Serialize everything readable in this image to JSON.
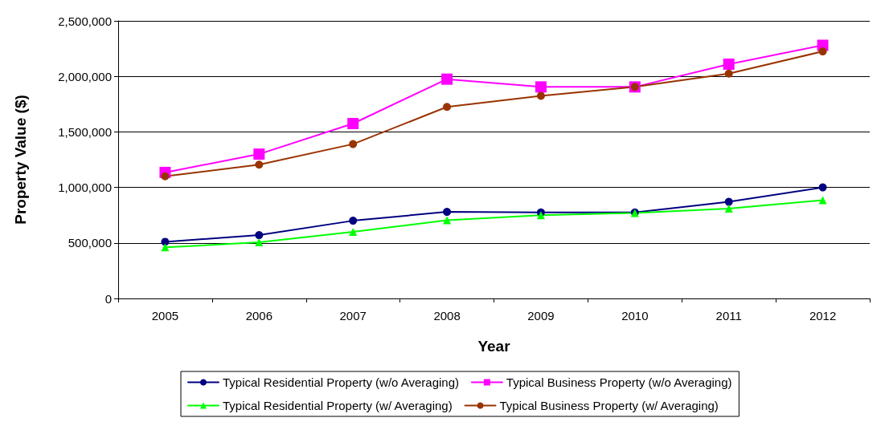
{
  "chart_data": {
    "type": "line",
    "xlabel": "Year",
    "ylabel": "Property Value ($)",
    "categories": [
      "2005",
      "2006",
      "2007",
      "2008",
      "2009",
      "2010",
      "2011",
      "2012"
    ],
    "series": [
      {
        "name": "Typical Residential Property (w/o Averaging)",
        "color": "#000080",
        "marker": "circle",
        "values": [
          510000,
          570000,
          700000,
          780000,
          775000,
          775000,
          870000,
          1000000
        ]
      },
      {
        "name": "Typical Business Property (w/o Averaging)",
        "color": "#ff00ff",
        "marker": "square",
        "values": [
          1135000,
          1300000,
          1575000,
          1975000,
          1905000,
          1905000,
          2110000,
          2280000
        ]
      },
      {
        "name": "Typical Residential Property (w/ Averaging)",
        "color": "#00ff00",
        "marker": "triangle",
        "values": [
          460000,
          505000,
          600000,
          705000,
          750000,
          770000,
          810000,
          885000
        ]
      },
      {
        "name": "Typical Business Property (w/ Averaging)",
        "color": "#993300",
        "marker": "circle",
        "values": [
          1100000,
          1205000,
          1390000,
          1725000,
          1825000,
          1905000,
          2025000,
          2225000
        ]
      }
    ],
    "ylim": [
      0,
      2500000
    ],
    "yticks": [
      {
        "value": 0,
        "label": "0"
      },
      {
        "value": 500000,
        "label": "500,000"
      },
      {
        "value": 1000000,
        "label": "1,000,000"
      },
      {
        "value": 1500000,
        "label": "1,500,000"
      },
      {
        "value": 2000000,
        "label": "2,000,000"
      },
      {
        "value": 2500000,
        "label": "2,500,000"
      }
    ],
    "grid": "y",
    "legend": "bottom",
    "line_style": "solid"
  }
}
